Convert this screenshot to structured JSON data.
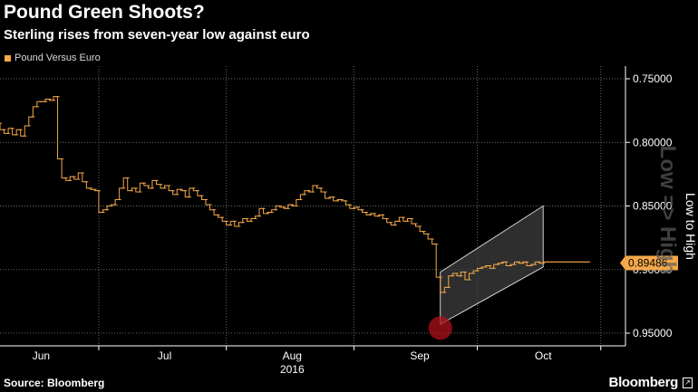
{
  "header": {
    "title": "Pound Green Shoots?",
    "subtitle": "Sterling rises from seven-year low against euro"
  },
  "legend": {
    "label": "Pound Versus Euro",
    "color": "#f4a84a"
  },
  "footer": {
    "source": "Source: Bloomberg",
    "brand": "Bloomberg"
  },
  "side_label": "Low to High",
  "watermark": "Low => High",
  "colors": {
    "background": "#000000",
    "series": "#f4a84a",
    "grid": "#6a6a6a",
    "channel_fill": "#3a3a3a",
    "highlight": "#b0101c"
  },
  "chart_data": {
    "type": "line",
    "title": "Pound Green Shoots?",
    "subtitle": "Sterling rises from seven-year low against euro",
    "xlabel": "2016",
    "ylabel": "",
    "y_inverted": true,
    "ylim": [
      0.75,
      0.95
    ],
    "y_ticks": [
      "0.75000",
      "0.80000",
      "0.85000",
      "0.90000",
      "0.95000"
    ],
    "y_tick_values": [
      0.75,
      0.8,
      0.85,
      0.9,
      0.95
    ],
    "x_ticks": [
      "Jun",
      "Jul",
      "Aug",
      "Sep",
      "Oct"
    ],
    "x_tick_days": [
      10,
      40,
      71,
      102,
      132
    ],
    "x_range_days": [
      0,
      152
    ],
    "x_separators_days": [
      24,
      55,
      86,
      116,
      146
    ],
    "last_value": "0.89486",
    "grid": true,
    "legend": "top-left",
    "series": [
      {
        "name": "Pound Versus Euro",
        "type": "step",
        "days": [
          0,
          1,
          2,
          3,
          4,
          5,
          6,
          7,
          8,
          9,
          10,
          11,
          12,
          13,
          14,
          15,
          16,
          17,
          18,
          19,
          20,
          21,
          22,
          23,
          24,
          25,
          26,
          27,
          28,
          29,
          30,
          31,
          32,
          33,
          34,
          35,
          36,
          37,
          38,
          39,
          40,
          41,
          42,
          43,
          44,
          45,
          46,
          47,
          48,
          49,
          50,
          51,
          52,
          53,
          54,
          55,
          56,
          57,
          58,
          59,
          60,
          61,
          62,
          63,
          64,
          65,
          66,
          67,
          68,
          69,
          70,
          71,
          72,
          73,
          74,
          75,
          76,
          77,
          78,
          79,
          80,
          81,
          82,
          83,
          84,
          85,
          86,
          87,
          88,
          89,
          90,
          91,
          92,
          93,
          94,
          95,
          96,
          97,
          98,
          99,
          100,
          101,
          102,
          103,
          104,
          105,
          106,
          107,
          108,
          109,
          110,
          111,
          112,
          113,
          114,
          115,
          116,
          117,
          118,
          119,
          120,
          121,
          122,
          123,
          124,
          125,
          126,
          127,
          128,
          129,
          130,
          131,
          132,
          133,
          134,
          135,
          136,
          137,
          138,
          139,
          140,
          141,
          142,
          143
        ],
        "values": [
          0.785,
          0.79,
          0.793,
          0.789,
          0.794,
          0.79,
          0.795,
          0.787,
          0.78,
          0.772,
          0.768,
          0.768,
          0.766,
          0.767,
          0.764,
          0.813,
          0.828,
          0.83,
          0.827,
          0.829,
          0.824,
          0.831,
          0.836,
          0.837,
          0.838,
          0.855,
          0.853,
          0.85,
          0.849,
          0.845,
          0.836,
          0.828,
          0.838,
          0.836,
          0.839,
          0.832,
          0.834,
          0.836,
          0.83,
          0.833,
          0.836,
          0.834,
          0.838,
          0.841,
          0.837,
          0.838,
          0.843,
          0.836,
          0.838,
          0.842,
          0.845,
          0.849,
          0.853,
          0.857,
          0.859,
          0.862,
          0.865,
          0.862,
          0.866,
          0.863,
          0.86,
          0.862,
          0.86,
          0.858,
          0.852,
          0.856,
          0.855,
          0.853,
          0.85,
          0.851,
          0.852,
          0.849,
          0.85,
          0.845,
          0.841,
          0.838,
          0.839,
          0.834,
          0.836,
          0.839,
          0.844,
          0.843,
          0.846,
          0.845,
          0.846,
          0.849,
          0.852,
          0.851,
          0.853,
          0.855,
          0.857,
          0.856,
          0.858,
          0.857,
          0.86,
          0.863,
          0.865,
          0.862,
          0.859,
          0.862,
          0.86,
          0.864,
          0.866,
          0.87,
          0.872,
          0.876,
          0.88,
          0.906,
          0.918,
          0.914,
          0.905,
          0.903,
          0.905,
          0.902,
          0.908,
          0.903,
          0.901,
          0.899,
          0.898,
          0.897,
          0.899,
          0.896,
          0.895,
          0.894,
          0.897,
          0.896,
          0.894,
          0.895,
          0.894,
          0.897,
          0.896,
          0.894,
          0.895,
          0.894,
          0.894,
          0.894,
          0.894,
          0.894,
          0.894,
          0.894,
          0.894,
          0.894,
          0.894,
          0.894
        ]
      }
    ],
    "channel": {
      "start_day": 107,
      "end_day": 132,
      "upper_start": 0.902,
      "upper_end": 0.85,
      "lower_start": 0.943,
      "lower_end": 0.898
    },
    "marker": {
      "day": 107,
      "value": 0.946
    }
  }
}
